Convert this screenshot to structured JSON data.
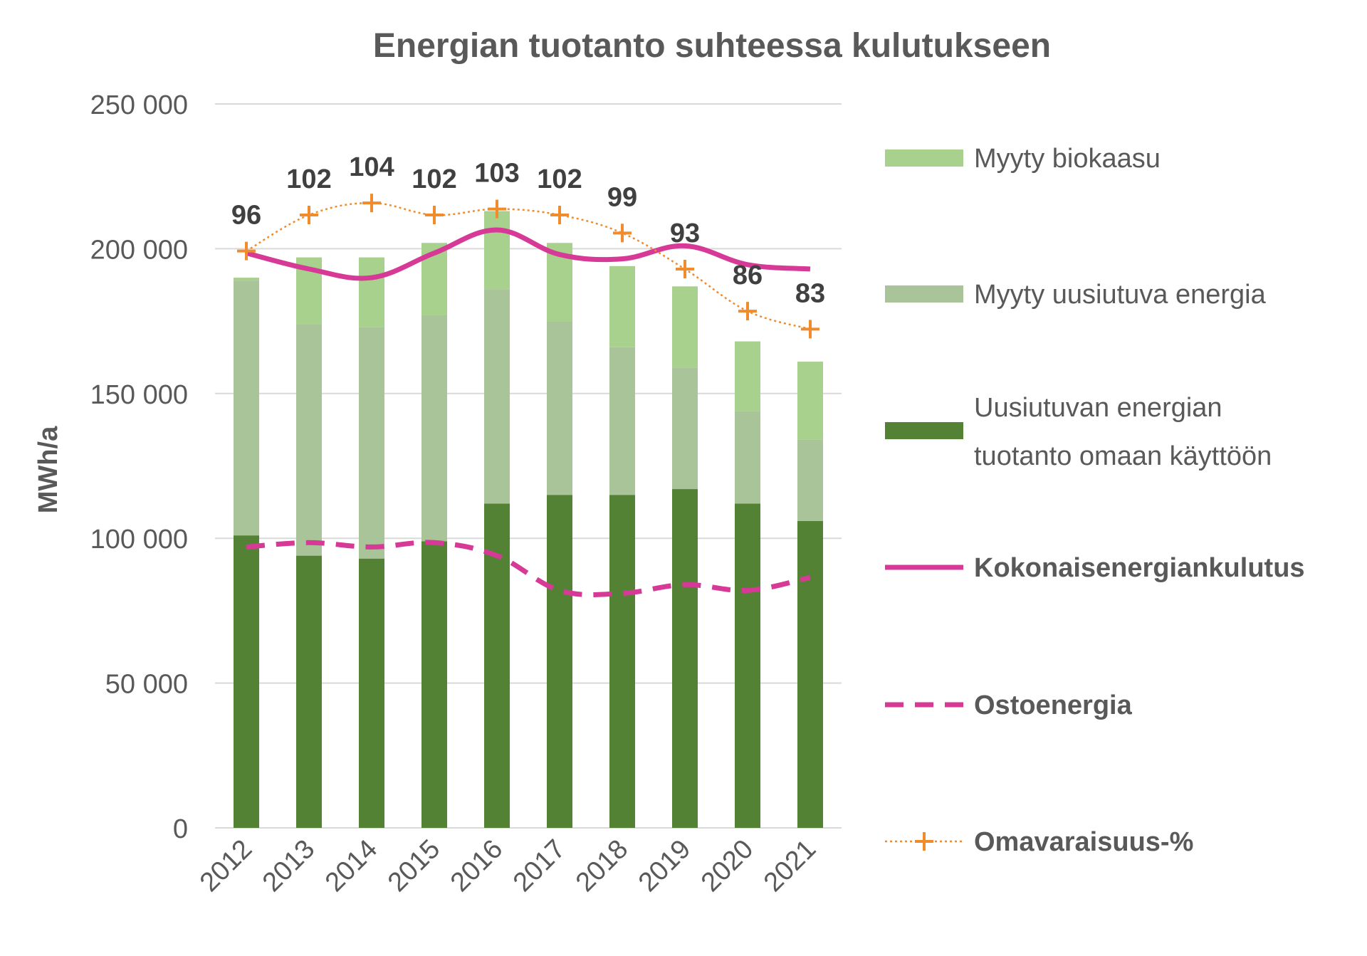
{
  "chart_data": {
    "type": "bar",
    "title": "Energian tuotanto suhteessa kulutukseen",
    "ylabel": "MWh/a",
    "xlabel": "",
    "ylim": [
      0,
      250000
    ],
    "y_ticks": [
      0,
      50000,
      100000,
      150000,
      200000,
      250000
    ],
    "y_tick_labels": [
      "0",
      "50 000",
      "100 000",
      "150 000",
      "200 000",
      "250 000"
    ],
    "grid": true,
    "legend_position": "right",
    "categories": [
      "2012",
      "2013",
      "2014",
      "2015",
      "2016",
      "2017",
      "2018",
      "2019",
      "2020",
      "2021"
    ],
    "series": [
      {
        "name": "Uusiutuvan energian tuotanto omaan käyttöön",
        "legend_lines": [
          "Uusiutuvan energian",
          "tuotanto omaan käyttöön"
        ],
        "kind": "stacked-bar",
        "color": "#548235",
        "values": [
          101000,
          94000,
          93000,
          99000,
          112000,
          115000,
          115000,
          117000,
          112000,
          106000
        ]
      },
      {
        "name": "Myyty uusiutuva energia",
        "legend_lines": [
          "Myyty uusiutuva energia"
        ],
        "kind": "stacked-bar",
        "color": "#A9C499",
        "values": [
          88000,
          80000,
          80000,
          78000,
          74000,
          60000,
          51000,
          42000,
          32000,
          28000
        ]
      },
      {
        "name": "Myyty biokaasu",
        "legend_lines": [
          "Myyty biokaasu"
        ],
        "kind": "stacked-bar",
        "color": "#A9D18E",
        "values": [
          1000,
          23000,
          24000,
          25000,
          27000,
          27000,
          28000,
          28000,
          24000,
          27000
        ]
      },
      {
        "name": "Kokonaisenergiankulutus",
        "legend_lines": [
          "Kokonaisenergiankulutus"
        ],
        "kind": "line",
        "color": "#D63A96",
        "values": [
          198500,
          193000,
          190000,
          198500,
          206500,
          198000,
          196500,
          201000,
          194500,
          193000
        ]
      },
      {
        "name": "Ostoenergia",
        "legend_lines": [
          "Ostoenergia"
        ],
        "kind": "dashed-line",
        "color": "#D63A96",
        "values": [
          97000,
          98500,
          97000,
          98500,
          94000,
          82000,
          81000,
          84000,
          82000,
          86500
        ]
      },
      {
        "name": "Omavaraisuus-%",
        "legend_lines": [
          "Omavaraisuus-%"
        ],
        "kind": "dotted-line-markers",
        "color": "#F08C2E",
        "values": [
          96,
          102,
          104,
          102,
          103,
          102,
          99,
          93,
          86,
          83
        ],
        "value_scale_factor": 2075,
        "data_labels": [
          "96",
          "102",
          "104",
          "102",
          "103",
          "102",
          "99",
          "93",
          "86",
          "83"
        ]
      }
    ]
  }
}
